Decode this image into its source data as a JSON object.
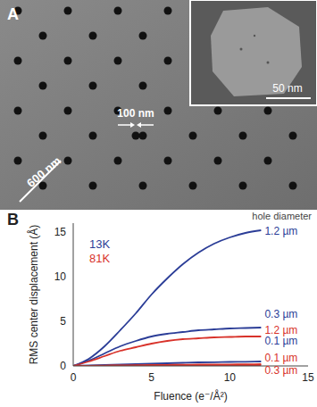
{
  "panel_a": {
    "panel_label": "A",
    "hole_label": "100 nm",
    "scale_bar": "600 nm",
    "inset_scale_bar": "50 nm"
  },
  "chart_data": {
    "type": "line",
    "panel_label": "B",
    "annotation": "hole diameter",
    "xlabel": "Fluence (e⁻/Å²)",
    "ylabel": "RMS center displacement (Å)",
    "x": [
      0,
      1,
      2,
      3,
      4,
      5,
      6,
      7,
      8,
      9,
      10,
      11,
      12
    ],
    "xlim": [
      0,
      15
    ],
    "xticks": [
      0,
      5,
      10,
      15
    ],
    "ylim": [
      0,
      16
    ],
    "yticks": [
      0,
      5,
      10,
      15
    ],
    "groups": [
      {
        "label": "13K",
        "color": "#2b3d97"
      },
      {
        "label": "81K",
        "color": "#d8322a"
      }
    ],
    "series": [
      {
        "name": "1.2 µm",
        "temperature": "13K",
        "color": "#2b3d97",
        "values": [
          0,
          0.8,
          2.2,
          4.0,
          5.9,
          8.0,
          9.8,
          11.4,
          12.7,
          13.7,
          14.4,
          14.9,
          15.2
        ]
      },
      {
        "name": "0.3 µm",
        "temperature": "13K",
        "color": "#2b3d97",
        "values": [
          0,
          0.6,
          1.4,
          2.2,
          2.8,
          3.3,
          3.6,
          3.8,
          4.0,
          4.1,
          4.2,
          4.25,
          4.3
        ]
      },
      {
        "name": "1.2 µm",
        "temperature": "81K",
        "color": "#d8322a",
        "values": [
          0,
          0.5,
          1.1,
          1.7,
          2.1,
          2.5,
          2.8,
          3.0,
          3.1,
          3.2,
          3.25,
          3.3,
          3.3
        ]
      },
      {
        "name": "0.1 µm",
        "temperature": "13K",
        "color": "#2b3d97",
        "values": [
          0,
          0.05,
          0.1,
          0.15,
          0.2,
          0.25,
          0.3,
          0.35,
          0.4,
          0.42,
          0.45,
          0.47,
          0.5
        ]
      },
      {
        "name": "0.1 µm",
        "temperature": "81K",
        "color": "#d8322a",
        "values": [
          0,
          0.02,
          0.04,
          0.06,
          0.08,
          0.1,
          0.12,
          0.14,
          0.15,
          0.16,
          0.17,
          0.18,
          0.2
        ]
      },
      {
        "name": "0.3 µm",
        "temperature": "81K",
        "color": "#d8322a",
        "values": [
          0,
          0.01,
          0.02,
          0.03,
          0.04,
          0.05,
          0.06,
          0.07,
          0.07,
          0.08,
          0.09,
          0.09,
          0.1
        ]
      }
    ]
  }
}
